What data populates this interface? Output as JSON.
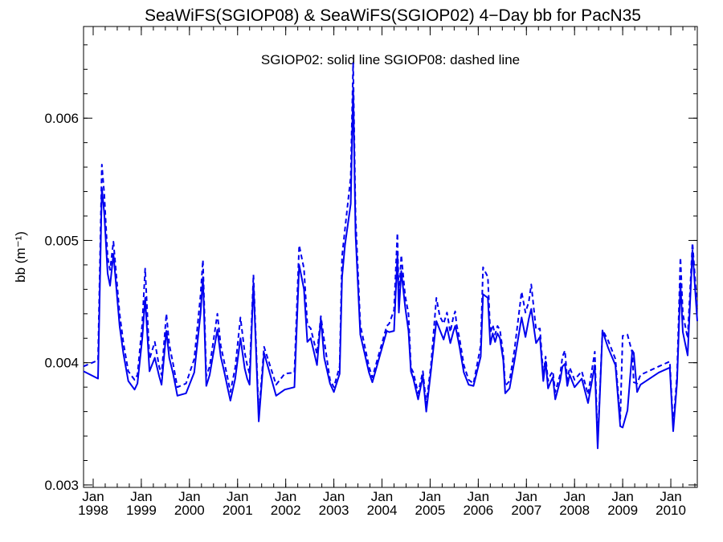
{
  "chart_data": {
    "type": "line",
    "title": "SeaWiFS(SGIOP08) & SeaWiFS(SGIOP02) 4−Day bb for PacN35",
    "annotation": "SGIOP02: solid line   SGIOP08: dashed line",
    "ylabel": "bb (m⁻¹)",
    "xlabel": "",
    "xlim": [
      1997.8,
      2010.55
    ],
    "ylim": [
      0.00298,
      0.00675
    ],
    "yticks": [
      0.003,
      0.004,
      0.005,
      0.006
    ],
    "ytick_labels": [
      "0.003",
      "0.004",
      "0.005",
      "0.006"
    ],
    "xticks": [
      {
        "x": 1998.0,
        "month": "Jan",
        "year": "1998"
      },
      {
        "x": 1999.0,
        "month": "Jan",
        "year": "1999"
      },
      {
        "x": 2000.0,
        "month": "Jan",
        "year": "2000"
      },
      {
        "x": 2001.0,
        "month": "Jan",
        "year": "2001"
      },
      {
        "x": 2002.0,
        "month": "Jan",
        "year": "2002"
      },
      {
        "x": 2003.0,
        "month": "Jan",
        "year": "2003"
      },
      {
        "x": 2004.0,
        "month": "Jan",
        "year": "2004"
      },
      {
        "x": 2005.0,
        "month": "Jan",
        "year": "2005"
      },
      {
        "x": 2006.0,
        "month": "Jan",
        "year": "2006"
      },
      {
        "x": 2007.0,
        "month": "Jan",
        "year": "2007"
      },
      {
        "x": 2008.0,
        "month": "Jan",
        "year": "2008"
      },
      {
        "x": 2009.0,
        "month": "Jan",
        "year": "2009"
      },
      {
        "x": 2010.0,
        "month": "Jan",
        "year": "2010"
      }
    ],
    "grid": false,
    "color": "#0000ee",
    "series": [
      {
        "name": "SGIOP02",
        "style": "solid",
        "x": [
          1997.8,
          1998.1,
          1998.18,
          1998.23,
          1998.3,
          1998.35,
          1998.42,
          1998.55,
          1998.63,
          1998.73,
          1998.86,
          1998.92,
          1999.02,
          1999.08,
          1999.17,
          1999.28,
          1999.37,
          1999.42,
          1999.52,
          1999.58,
          1999.66,
          1999.75,
          1999.93,
          2000.1,
          2000.23,
          2000.28,
          2000.35,
          2000.42,
          2000.58,
          2000.65,
          2000.72,
          2000.8,
          2000.85,
          2000.95,
          2001.06,
          2001.15,
          2001.2,
          2001.25,
          2001.33,
          2001.44,
          2001.55,
          2001.8,
          2001.98,
          2002.18,
          2002.28,
          2002.38,
          2002.45,
          2002.52,
          2002.65,
          2002.73,
          2002.8,
          2002.92,
          2003.0,
          2003.12,
          2003.17,
          2003.23,
          2003.35,
          2003.4,
          2003.45,
          2003.55,
          2003.73,
          2003.8,
          2004.1,
          2004.15,
          2004.25,
          2004.32,
          2004.35,
          2004.4,
          2004.48,
          2004.55,
          2004.6,
          2004.65,
          2004.75,
          2004.85,
          2004.92,
          2005.02,
          2005.13,
          2005.2,
          2005.28,
          2005.35,
          2005.42,
          2005.48,
          2005.52,
          2005.55,
          2005.61,
          2005.7,
          2005.8,
          2005.9,
          2006.05,
          2006.1,
          2006.2,
          2006.25,
          2006.3,
          2006.35,
          2006.4,
          2006.45,
          2006.52,
          2006.56,
          2006.65,
          2006.75,
          2006.9,
          2006.98,
          2007.05,
          2007.1,
          2007.2,
          2007.28,
          2007.35,
          2007.4,
          2007.45,
          2007.5,
          2007.55,
          2007.6,
          2007.7,
          2007.75,
          2007.8,
          2007.85,
          2007.9,
          2008.0,
          2008.15,
          2008.28,
          2008.42,
          2008.48,
          2008.58,
          2008.7,
          2008.85,
          2008.95,
          2009.0,
          2009.1,
          2009.2,
          2009.23,
          2009.3,
          2009.37,
          2009.75,
          2009.98,
          2010.05,
          2010.13,
          2010.2,
          2010.25,
          2010.35,
          2010.45,
          2010.55
        ],
        "y": [
          0.00393,
          0.00387,
          0.00543,
          0.00522,
          0.00473,
          0.00463,
          0.00489,
          0.0043,
          0.00407,
          0.00385,
          0.00378,
          0.00383,
          0.0042,
          0.00453,
          0.00393,
          0.00404,
          0.00389,
          0.00382,
          0.00426,
          0.00404,
          0.00391,
          0.00373,
          0.00375,
          0.00392,
          0.0044,
          0.0047,
          0.00381,
          0.0039,
          0.00427,
          0.00405,
          0.00393,
          0.00378,
          0.00369,
          0.00387,
          0.0042,
          0.00395,
          0.00387,
          0.00382,
          0.00465,
          0.00352,
          0.00408,
          0.00373,
          0.00378,
          0.0038,
          0.0048,
          0.0046,
          0.00417,
          0.0042,
          0.00398,
          0.00436,
          0.00404,
          0.00383,
          0.00376,
          0.00391,
          0.0047,
          0.00496,
          0.0053,
          0.00625,
          0.00505,
          0.00423,
          0.00392,
          0.00384,
          0.00426,
          0.00425,
          0.00426,
          0.00488,
          0.00441,
          0.00475,
          0.00446,
          0.00426,
          0.00393,
          0.00387,
          0.0037,
          0.00389,
          0.0036,
          0.00394,
          0.00434,
          0.00427,
          0.00419,
          0.00429,
          0.00416,
          0.00425,
          0.0043,
          0.00425,
          0.00413,
          0.00392,
          0.00382,
          0.00381,
          0.00405,
          0.00456,
          0.00453,
          0.00415,
          0.00424,
          0.00417,
          0.00424,
          0.0042,
          0.00402,
          0.00375,
          0.00379,
          0.00401,
          0.00437,
          0.00421,
          0.00436,
          0.00444,
          0.00416,
          0.00421,
          0.00385,
          0.00401,
          0.00379,
          0.00384,
          0.00388,
          0.0037,
          0.00385,
          0.00397,
          0.00399,
          0.00381,
          0.0039,
          0.0038,
          0.00387,
          0.00367,
          0.00398,
          0.0033,
          0.00426,
          0.00412,
          0.00398,
          0.00348,
          0.00347,
          0.00361,
          0.0041,
          0.00408,
          0.00376,
          0.00382,
          0.00392,
          0.00396,
          0.00344,
          0.00384,
          0.00465,
          0.00425,
          0.00406,
          0.00492,
          0.00434
        ]
      },
      {
        "name": "SGIOP08",
        "style": "dashed",
        "x": [
          1997.8,
          1998.1,
          1998.18,
          1998.23,
          1998.3,
          1998.35,
          1998.42,
          1998.55,
          1998.63,
          1998.73,
          1998.86,
          1998.92,
          1999.02,
          1999.08,
          1999.17,
          1999.28,
          1999.37,
          1999.42,
          1999.52,
          1999.58,
          1999.66,
          1999.75,
          1999.93,
          2000.1,
          2000.23,
          2000.28,
          2000.35,
          2000.42,
          2000.58,
          2000.65,
          2000.72,
          2000.8,
          2000.85,
          2000.95,
          2001.06,
          2001.15,
          2001.2,
          2001.25,
          2001.33,
          2001.44,
          2001.55,
          2001.8,
          2001.98,
          2002.18,
          2002.28,
          2002.38,
          2002.45,
          2002.52,
          2002.65,
          2002.73,
          2002.8,
          2002.92,
          2003.0,
          2003.12,
          2003.17,
          2003.23,
          2003.35,
          2003.4,
          2003.45,
          2003.55,
          2003.73,
          2003.8,
          2004.1,
          2004.15,
          2004.25,
          2004.32,
          2004.35,
          2004.4,
          2004.48,
          2004.55,
          2004.6,
          2004.65,
          2004.75,
          2004.85,
          2004.92,
          2005.02,
          2005.13,
          2005.2,
          2005.28,
          2005.35,
          2005.42,
          2005.48,
          2005.52,
          2005.55,
          2005.61,
          2005.7,
          2005.8,
          2005.9,
          2006.05,
          2006.1,
          2006.2,
          2006.25,
          2006.3,
          2006.35,
          2006.4,
          2006.45,
          2006.52,
          2006.56,
          2006.65,
          2006.75,
          2006.9,
          2006.98,
          2007.05,
          2007.1,
          2007.2,
          2007.28,
          2007.35,
          2007.4,
          2007.45,
          2007.5,
          2007.55,
          2007.6,
          2007.7,
          2007.75,
          2007.8,
          2007.85,
          2007.9,
          2008.0,
          2008.15,
          2008.28,
          2008.42,
          2008.48,
          2008.58,
          2008.7,
          2008.85,
          2008.95,
          2009.0,
          2009.1,
          2009.2,
          2009.23,
          2009.3,
          2009.37,
          2009.75,
          2009.98,
          2010.05,
          2010.13,
          2010.2,
          2010.25,
          2010.35,
          2010.45,
          2010.55
        ],
        "y": [
          0.00397,
          0.00402,
          0.00562,
          0.00538,
          0.00486,
          0.00476,
          0.00499,
          0.0044,
          0.00416,
          0.00393,
          0.00386,
          0.0039,
          0.00432,
          0.00477,
          0.00403,
          0.00417,
          0.00397,
          0.0039,
          0.0044,
          0.00415,
          0.00399,
          0.0038,
          0.00383,
          0.00403,
          0.00455,
          0.00484,
          0.00389,
          0.00397,
          0.0044,
          0.00414,
          0.00401,
          0.00386,
          0.00376,
          0.00396,
          0.00437,
          0.00408,
          0.00398,
          0.00391,
          0.00472,
          0.00357,
          0.00413,
          0.00382,
          0.00391,
          0.00392,
          0.00496,
          0.00477,
          0.00431,
          0.00428,
          0.00407,
          0.00438,
          0.00418,
          0.00386,
          0.0038,
          0.00397,
          0.00487,
          0.00509,
          0.00552,
          0.00645,
          0.0052,
          0.00431,
          0.00397,
          0.00388,
          0.0043,
          0.00432,
          0.00443,
          0.00506,
          0.00451,
          0.00488,
          0.00455,
          0.0044,
          0.00396,
          0.00392,
          0.00375,
          0.00393,
          0.00366,
          0.00399,
          0.00453,
          0.00438,
          0.00432,
          0.00441,
          0.00425,
          0.00437,
          0.00442,
          0.00431,
          0.0042,
          0.00398,
          0.00386,
          0.00383,
          0.00414,
          0.00478,
          0.0047,
          0.00424,
          0.00431,
          0.00423,
          0.0043,
          0.00427,
          0.00407,
          0.00381,
          0.00385,
          0.0041,
          0.00458,
          0.00441,
          0.0045,
          0.00464,
          0.00427,
          0.00428,
          0.0039,
          0.00405,
          0.00385,
          0.0039,
          0.00393,
          0.00376,
          0.0039,
          0.00405,
          0.0041,
          0.00386,
          0.00396,
          0.00386,
          0.00393,
          0.00374,
          0.00409,
          0.00335,
          0.00427,
          0.00418,
          0.00403,
          0.00354,
          0.00422,
          0.00423,
          0.00408,
          0.00384,
          0.00383,
          0.0039,
          0.00397,
          0.00401,
          0.00348,
          0.0039,
          0.00486,
          0.0044,
          0.0042,
          0.00498,
          0.00444
        ]
      }
    ]
  }
}
